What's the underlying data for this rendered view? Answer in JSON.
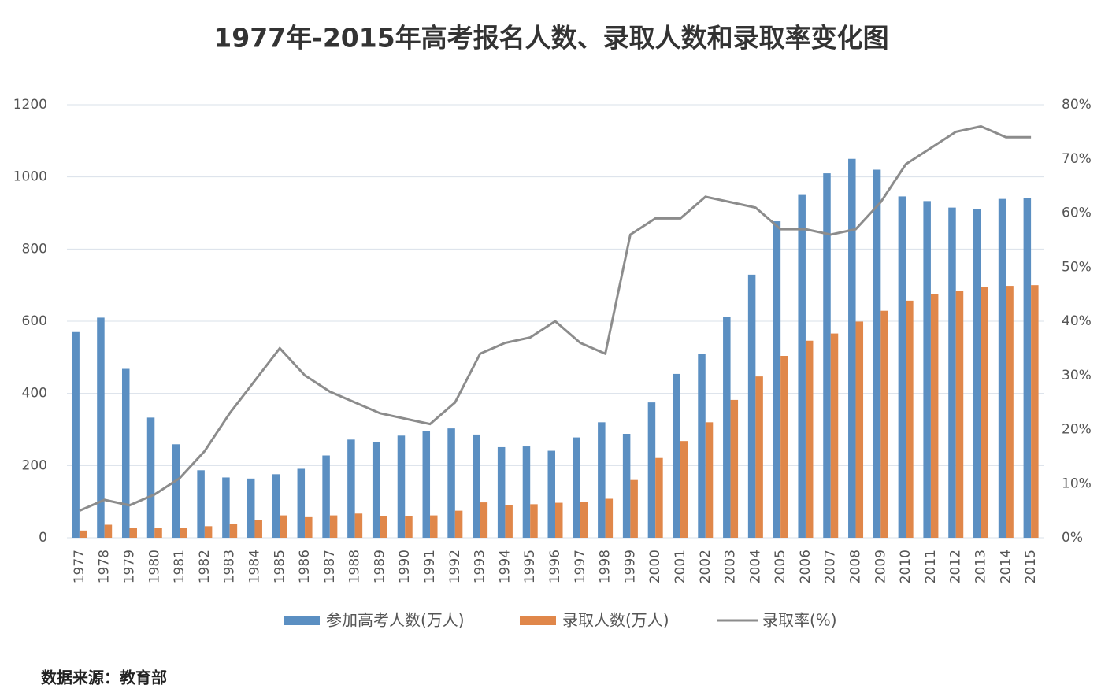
{
  "chart_data": {
    "type": "bar-line",
    "title": "1977年-2015年高考报名人数、录取人数和录取率变化图",
    "source": "数据来源：教育部",
    "categories": [
      "1977",
      "1978",
      "1979",
      "1980",
      "1981",
      "1982",
      "1983",
      "1984",
      "1985",
      "1986",
      "1987",
      "1988",
      "1989",
      "1990",
      "1991",
      "1992",
      "1993",
      "1994",
      "1995",
      "1996",
      "1997",
      "1998",
      "1999",
      "2000",
      "2001",
      "2002",
      "2003",
      "2004",
      "2005",
      "2006",
      "2007",
      "2008",
      "2009",
      "2010",
      "2011",
      "2012",
      "2013",
      "2014",
      "2015"
    ],
    "series": [
      {
        "name": "参加高考人数(万人)",
        "color": "#5b8fc2",
        "kind": "bar",
        "values": [
          570,
          610,
          468,
          333,
          259,
          187,
          167,
          164,
          176,
          191,
          228,
          272,
          266,
          283,
          296,
          303,
          286,
          251,
          253,
          241,
          278,
          320,
          288,
          375,
          454,
          510,
          613,
          729,
          877,
          950,
          1010,
          1050,
          1020,
          946,
          933,
          915,
          912,
          939,
          942
        ]
      },
      {
        "name": "录取人数(万人)",
        "color": "#e0874a",
        "kind": "bar",
        "values": [
          20,
          36,
          28,
          28,
          28,
          32,
          39,
          48,
          62,
          57,
          62,
          67,
          60,
          61,
          62,
          75,
          98,
          90,
          93,
          97,
          100,
          108,
          160,
          221,
          268,
          320,
          382,
          447,
          504,
          546,
          566,
          599,
          629,
          657,
          675,
          685,
          694,
          698,
          700
        ]
      },
      {
        "name": "录取率(%)",
        "color": "#8c8c8c",
        "kind": "line",
        "axis": "y2",
        "values": [
          5,
          7,
          6,
          8,
          11,
          16,
          23,
          29,
          35,
          30,
          27,
          25,
          23,
          22,
          21,
          25,
          34,
          36,
          37,
          40,
          36,
          34,
          56,
          59,
          59,
          63,
          62,
          61,
          57,
          57,
          56,
          57,
          62,
          69,
          72,
          75,
          76,
          74,
          74
        ]
      }
    ],
    "ylim": [
      0,
      1200
    ],
    "yticks": [
      0,
      200,
      400,
      600,
      800,
      1000,
      1200
    ],
    "y2lim": [
      0,
      80
    ],
    "y2ticks": [
      {
        "value": 0,
        "label": "0%"
      },
      {
        "value": 10,
        "label": "10%"
      },
      {
        "value": 20,
        "label": "20%"
      },
      {
        "value": 30,
        "label": "30%"
      },
      {
        "value": 40,
        "label": "40%"
      },
      {
        "value": 50,
        "label": "50%"
      },
      {
        "value": 60,
        "label": "60%"
      },
      {
        "value": 70,
        "label": "70%"
      },
      {
        "value": 80,
        "label": "80%"
      }
    ],
    "grid": true
  }
}
